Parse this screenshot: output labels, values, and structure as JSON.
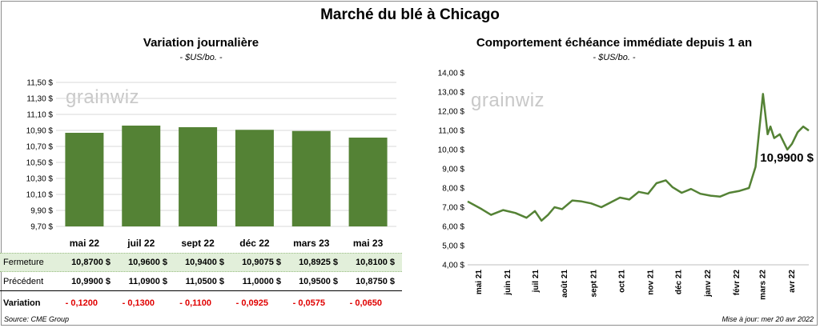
{
  "title": "Marché du blé à Chicago",
  "left": {
    "title": "Variation journalière",
    "unit": "- $US/bo. -",
    "watermark": "grainwiz"
  },
  "right": {
    "title": "Comportement échéance immédiate depuis 1 an",
    "unit": "- $US/bo. -",
    "watermark": "grainwiz",
    "last_label": "10,9900 $"
  },
  "table": {
    "close_label": "Fermeture",
    "prev_label": "Précédent",
    "var_label": "Variation",
    "close": [
      "10,8700 $",
      "10,9600 $",
      "10,9400 $",
      "10,9075 $",
      "10,8925 $",
      "10,8100 $"
    ],
    "prev": [
      "10,9900 $",
      "11,0900 $",
      "11,0500 $",
      "11,0000 $",
      "10,9500 $",
      "10,8750 $"
    ],
    "var": [
      "- 0,1200",
      "- 0,1300",
      "- 0,1100",
      "- 0,0925",
      "- 0,0575",
      "- 0,0650"
    ]
  },
  "footer": {
    "source": "Source: CME Group",
    "updated": "Mise à jour: mer 20 avr 2022"
  },
  "colors": {
    "bar": "#548235",
    "line": "#548235",
    "grid": "#d9d9d9",
    "close_row": "#e2efda",
    "negative": "#e00000"
  },
  "chart_data": [
    {
      "type": "bar",
      "categories": [
        "mai 22",
        "juil 22",
        "sept 22",
        "déc 22",
        "mars 23",
        "mai 23"
      ],
      "values": [
        10.87,
        10.96,
        10.94,
        10.9075,
        10.8925,
        10.81
      ],
      "ylim": [
        9.7,
        11.5
      ],
      "yticks": [
        "9,70 $",
        "9,90 $",
        "10,10 $",
        "10,30 $",
        "10,50 $",
        "10,70 $",
        "10,90 $",
        "11,10 $",
        "11,30 $",
        "11,50 $"
      ],
      "grid": true
    },
    {
      "type": "line",
      "ylim": [
        4,
        14
      ],
      "yticks": [
        "4,00 $",
        "5,00 $",
        "6,00 $",
        "7,00 $",
        "8,00 $",
        "9,00 $",
        "10,00 $",
        "11,00 $",
        "12,00 $",
        "13,00 $",
        "14,00 $"
      ],
      "xticks": [
        "mai 21",
        "juin 21",
        "juil 21",
        "août 21",
        "sept 21",
        "oct 21",
        "nov 21",
        "déc 21",
        "janv 22",
        "févr 22",
        "mars 22",
        "avr 22"
      ],
      "x": [
        "2021-04-20",
        "2021-05-05",
        "2021-05-15",
        "2021-05-28",
        "2021-06-10",
        "2021-06-22",
        "2021-07-01",
        "2021-07-08",
        "2021-07-15",
        "2021-07-22",
        "2021-07-30",
        "2021-08-10",
        "2021-08-20",
        "2021-08-30",
        "2021-09-10",
        "2021-09-20",
        "2021-09-30",
        "2021-10-10",
        "2021-10-20",
        "2021-10-30",
        "2021-11-08",
        "2021-11-18",
        "2021-11-25",
        "2021-12-05",
        "2021-12-15",
        "2021-12-25",
        "2022-01-05",
        "2022-01-15",
        "2022-01-25",
        "2022-02-05",
        "2022-02-15",
        "2022-02-22",
        "2022-02-26",
        "2022-03-02",
        "2022-03-07",
        "2022-03-10",
        "2022-03-14",
        "2022-03-20",
        "2022-03-28",
        "2022-04-02",
        "2022-04-08",
        "2022-04-14",
        "2022-04-20"
      ],
      "values": [
        7.3,
        6.9,
        6.6,
        6.85,
        6.7,
        6.45,
        6.8,
        6.3,
        6.6,
        7.0,
        6.9,
        7.35,
        7.3,
        7.2,
        7.0,
        7.25,
        7.5,
        7.4,
        7.8,
        7.7,
        8.25,
        8.4,
        8.05,
        7.75,
        7.95,
        7.7,
        7.6,
        7.55,
        7.75,
        7.85,
        8.0,
        9.1,
        11.0,
        12.9,
        10.8,
        11.2,
        10.6,
        10.8,
        10.0,
        10.3,
        10.9,
        11.2,
        10.99
      ],
      "series": [
        {
          "values_ref": "values"
        }
      ],
      "annotation": "10,9900 $",
      "grid": false
    }
  ]
}
